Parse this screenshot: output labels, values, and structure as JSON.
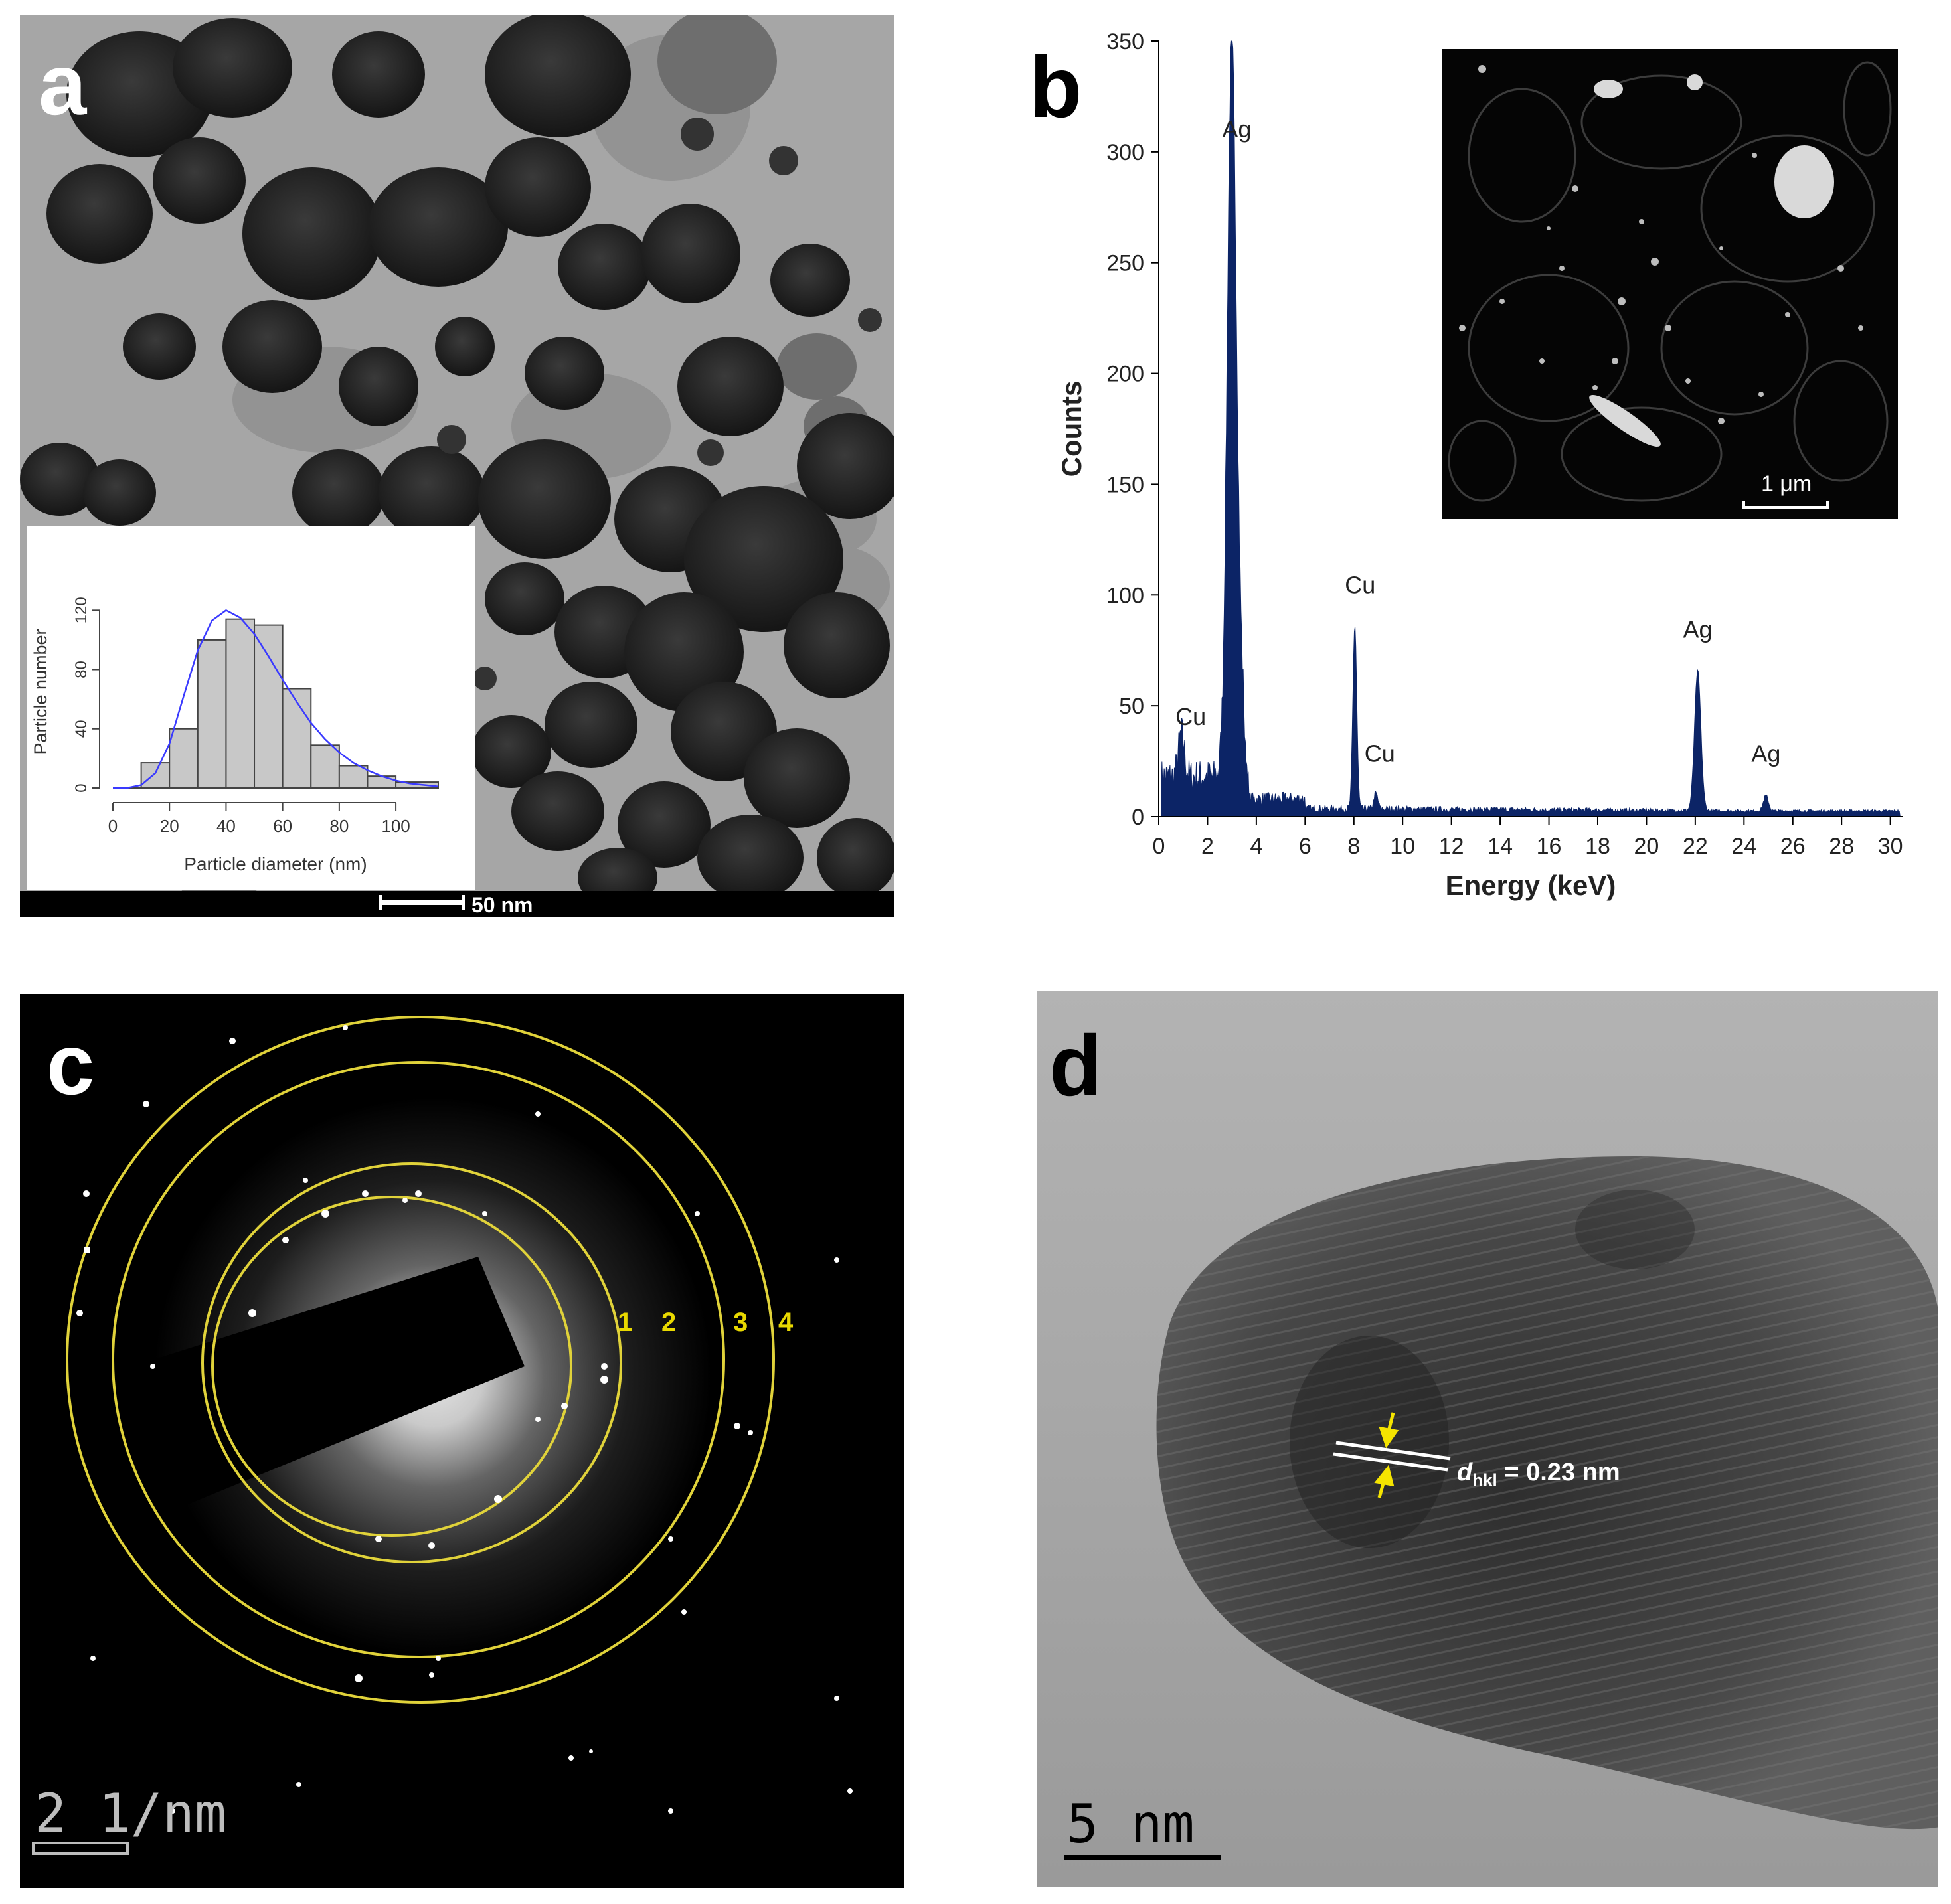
{
  "panels": {
    "a": {
      "label": "a",
      "scale_bar": "50 nm",
      "inset": {
        "chart_index": 0
      }
    },
    "b": {
      "label": "b",
      "inset_scale_bar": "1 μm",
      "chart_index": 1
    },
    "c": {
      "label": "c",
      "ring_labels": [
        "1",
        "2",
        "3",
        "4"
      ],
      "scale_bar": "2 1/nm"
    },
    "d": {
      "label": "d",
      "annotation_d": "d",
      "annotation_sub": "hkl",
      "annotation_value": "= 0.23 nm",
      "scale_bar": "5 nm"
    }
  },
  "colors": {
    "spectrum_fill": "#0c2466",
    "fit_curve": "#3a3aff",
    "rings": "#e0d23a",
    "arrows": "#f5e400",
    "hist_bar": "#c8c8c8"
  },
  "chart_data": [
    {
      "type": "bar",
      "xlabel": "Particle diameter (nm)",
      "ylabel": "Particle number",
      "x_ticks": [
        0,
        20,
        40,
        60,
        80,
        100
      ],
      "y_ticks": [
        0,
        40,
        80,
        120
      ],
      "xlim": [
        0,
        115
      ],
      "ylim": [
        0,
        130
      ],
      "bin_edges": [
        10,
        20,
        30,
        40,
        50,
        60,
        70,
        80,
        90,
        100,
        115
      ],
      "values": [
        17,
        40,
        100,
        114,
        110,
        67,
        29,
        15,
        8,
        4
      ],
      "fit_curve": {
        "x": [
          0,
          5,
          10,
          15,
          20,
          25,
          30,
          35,
          40,
          45,
          50,
          55,
          60,
          65,
          70,
          75,
          80,
          85,
          90,
          95,
          100,
          105,
          110,
          115
        ],
        "y": [
          0,
          0,
          2,
          10,
          30,
          62,
          93,
          113,
          120,
          115,
          104,
          89,
          73,
          58,
          44,
          33,
          24,
          17,
          12,
          8,
          5,
          3,
          2,
          1
        ]
      },
      "grid": false
    },
    {
      "type": "area",
      "xlabel": "Energy (keV)",
      "ylabel": "Counts",
      "xlim": [
        0,
        30.5
      ],
      "ylim": [
        0,
        350
      ],
      "x_ticks": [
        0,
        2,
        4,
        6,
        8,
        10,
        12,
        14,
        16,
        18,
        20,
        22,
        24,
        26,
        28,
        30
      ],
      "y_ticks": [
        0,
        50,
        100,
        150,
        200,
        250,
        300,
        350
      ],
      "peaks": [
        {
          "label": "Cu",
          "energy": 0.93,
          "counts": 30
        },
        {
          "label": "Ag",
          "energy": 2.98,
          "counts": 300
        },
        {
          "label": "Cu",
          "energy": 8.04,
          "counts": 93
        },
        {
          "label": "Cu",
          "energy": 8.9,
          "counts": 17
        },
        {
          "label": "Ag",
          "energy": 22.1,
          "counts": 73
        },
        {
          "label": "Ag",
          "energy": 24.9,
          "counts": 17
        }
      ],
      "grid": false
    }
  ]
}
